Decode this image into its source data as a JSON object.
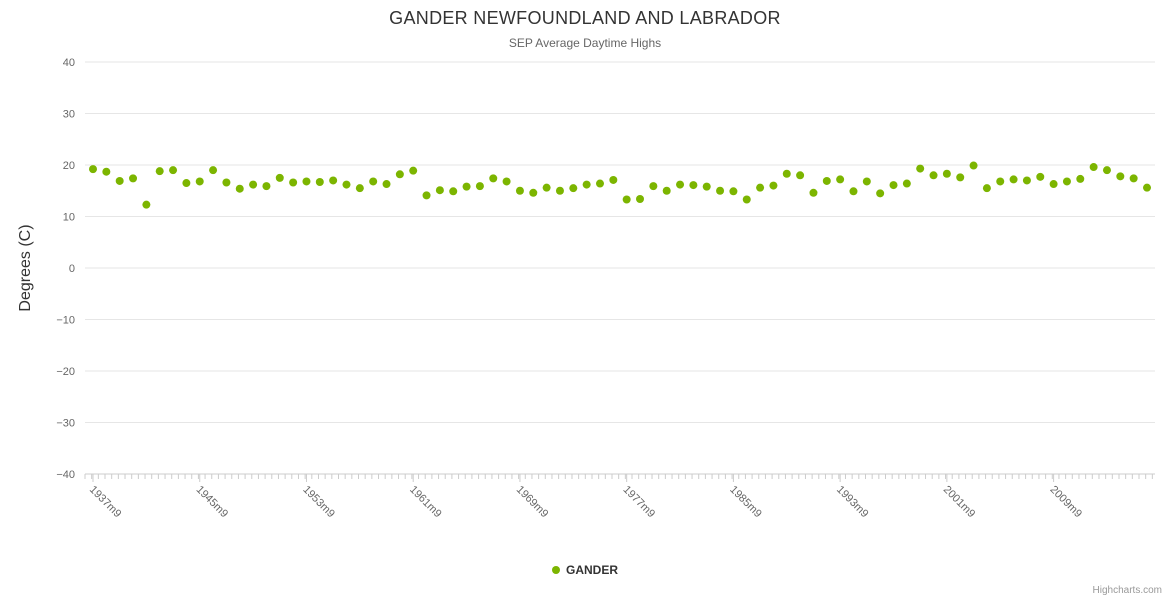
{
  "credit": "Highcharts.com",
  "colors": {
    "series": "#7cb500",
    "grid": "#e6e6e6",
    "axis": "#cccccc",
    "tick": "#cccccc",
    "label": "#666666",
    "title": "#333333",
    "subtitle": "#666666",
    "legend_text": "#333333",
    "credit": "#999999"
  },
  "chart_data": {
    "type": "scatter",
    "title": "GANDER NEWFOUNDLAND AND LABRADOR",
    "subtitle": "SEP Average Daytime Highs",
    "ylabel": "Degrees (C)",
    "xlabel": "",
    "ylim": [
      -40,
      40
    ],
    "grid": true,
    "legend_position": "bottom",
    "ytick_values": [
      40,
      30,
      20,
      10,
      0,
      -10,
      -20,
      -30,
      -40
    ],
    "ytick_labels": [
      "40",
      "30",
      "20",
      "10",
      "0",
      "−10",
      "−20",
      "−30",
      "−40"
    ],
    "x_start_year": 1937,
    "x_label_suffix": "m9",
    "xticks": [
      {
        "index": 0,
        "label": "1937m9"
      },
      {
        "index": 8,
        "label": "1945m9"
      },
      {
        "index": 16,
        "label": "1953m9"
      },
      {
        "index": 24,
        "label": "1961m9"
      },
      {
        "index": 32,
        "label": "1969m9"
      },
      {
        "index": 40,
        "label": "1977m9"
      },
      {
        "index": 48,
        "label": "1985m9"
      },
      {
        "index": 56,
        "label": "1993m9"
      },
      {
        "index": 64,
        "label": "2001m9"
      },
      {
        "index": 72,
        "label": "2009m9"
      }
    ],
    "series": [
      {
        "name": "GANDER",
        "color": "#7cb500",
        "values": [
          19.2,
          18.7,
          16.9,
          17.4,
          12.3,
          18.8,
          19.0,
          16.5,
          16.8,
          19.0,
          16.6,
          15.4,
          16.2,
          15.9,
          17.5,
          16.6,
          16.8,
          16.7,
          17.0,
          16.2,
          15.5,
          16.8,
          16.3,
          18.2,
          18.9,
          14.1,
          15.1,
          14.9,
          15.8,
          15.9,
          17.4,
          16.8,
          15.0,
          14.6,
          15.6,
          15.0,
          15.5,
          16.2,
          16.4,
          17.1,
          13.3,
          13.4,
          15.9,
          15.0,
          16.2,
          16.1,
          15.8,
          15.0,
          14.9,
          13.3,
          15.6,
          16.0,
          18.3,
          18.0,
          14.6,
          16.9,
          17.2,
          14.9,
          16.8,
          14.5,
          16.1,
          16.4,
          19.3,
          18.0,
          18.3,
          17.6,
          19.9,
          15.5,
          16.8,
          17.2,
          17.0,
          17.7,
          16.3,
          16.8,
          17.3,
          19.6,
          19.0,
          17.8,
          17.4,
          15.6
        ]
      }
    ]
  }
}
